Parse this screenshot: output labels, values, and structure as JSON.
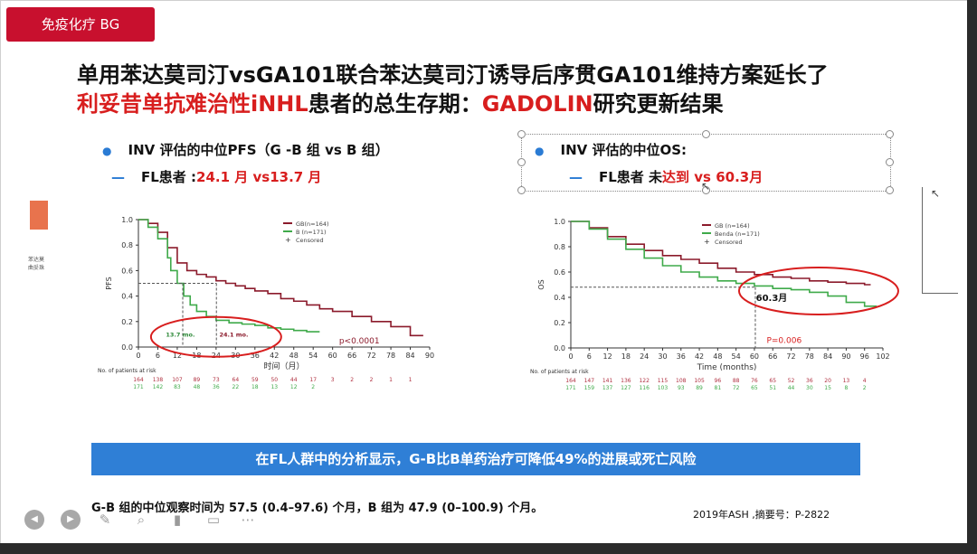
{
  "tag": "免疫化疗 BG",
  "title": {
    "line1": "单用苯达莫司汀vsGA101联合苯达莫司汀诱导后序贯GA101维持方案延长了",
    "line2_red": "利妥昔单抗难治性iNHL",
    "line2_mid": "患者的总生存期：",
    "line2_red2": "GADOLIN",
    "line2_end": "研究更新结果"
  },
  "left_panel": {
    "bullet": "INV 评估的中位PFS（G -B 组 vs  B 组）",
    "sub_prefix": "FL患者 :",
    "sub_value": "24.1 月 vs13.7 月"
  },
  "right_panel": {
    "bullet": "INV 评估的中位OS:",
    "sub_prefix": "FL患者 未",
    "sub_red": "达到",
    "sub_value": " vs 60.3月"
  },
  "side_label": "苯达莫\n曲妥珠",
  "chart_data": [
    {
      "type": "line",
      "ylabel": "PFS",
      "xlabel": "时间（月）",
      "ylim": [
        0,
        1.0
      ],
      "xlim": [
        0,
        90
      ],
      "x_ticks": [
        0,
        6,
        12,
        18,
        24,
        30,
        36,
        42,
        48,
        54,
        60,
        66,
        72,
        78,
        84,
        90
      ],
      "y_ticks": [
        "0.0",
        "0.2",
        "0.4",
        "0.6",
        "0.8",
        "1.0"
      ],
      "legend": [
        "GB(n=164)",
        "B (n=171)",
        "Censored"
      ],
      "series": [
        {
          "name": "GB(n=164)",
          "color": "#8b1a2b",
          "x": [
            0,
            3,
            6,
            9,
            12,
            15,
            18,
            21,
            24,
            27,
            30,
            33,
            36,
            40,
            44,
            48,
            52,
            56,
            60,
            66,
            72,
            78,
            84,
            88
          ],
          "y": [
            1.0,
            0.97,
            0.9,
            0.78,
            0.66,
            0.6,
            0.57,
            0.55,
            0.52,
            0.5,
            0.48,
            0.46,
            0.44,
            0.42,
            0.38,
            0.36,
            0.33,
            0.3,
            0.28,
            0.24,
            0.2,
            0.16,
            0.09,
            0.09
          ]
        },
        {
          "name": "B (n=171)",
          "color": "#3faa4a",
          "x": [
            0,
            3,
            6,
            9,
            10,
            12,
            14,
            16,
            18,
            21,
            24,
            28,
            32,
            36,
            40,
            44,
            48,
            52,
            56
          ],
          "y": [
            1.0,
            0.94,
            0.85,
            0.7,
            0.6,
            0.5,
            0.4,
            0.33,
            0.28,
            0.24,
            0.21,
            0.19,
            0.18,
            0.17,
            0.15,
            0.14,
            0.13,
            0.12,
            0.12
          ]
        }
      ],
      "annotations": [
        "13.7 mo.",
        "24.1 mo.",
        "p<0.0001"
      ],
      "risk_label": "No. of patients at risk",
      "risk": [
        {
          "color": "#b03040",
          "values": [
            "164",
            "138",
            "107",
            "89",
            "73",
            "64",
            "59",
            "50",
            "44",
            "17",
            "3",
            "2",
            "2",
            "1",
            "1"
          ]
        },
        {
          "color": "#3faa4a",
          "values": [
            "171",
            "142",
            "83",
            "48",
            "36",
            "22",
            "18",
            "13",
            "12",
            "2"
          ]
        }
      ]
    },
    {
      "type": "line",
      "ylabel": "OS",
      "xlabel": "Time (months)",
      "ylim": [
        0,
        1.0
      ],
      "xlim": [
        0,
        102
      ],
      "x_ticks": [
        0,
        6,
        12,
        18,
        24,
        30,
        36,
        42,
        48,
        54,
        60,
        66,
        72,
        78,
        84,
        90,
        96,
        102
      ],
      "y_ticks": [
        "0.0",
        "0.2",
        "0.4",
        "0.6",
        "0.8",
        "1.0"
      ],
      "legend": [
        "GB (n=164)",
        "Benda (n=171)",
        "Censored"
      ],
      "series": [
        {
          "name": "GB (n=164)",
          "color": "#8b1a2b",
          "x": [
            0,
            6,
            12,
            18,
            24,
            30,
            36,
            42,
            48,
            54,
            60,
            66,
            72,
            78,
            84,
            90,
            96,
            98
          ],
          "y": [
            1.0,
            0.95,
            0.88,
            0.82,
            0.77,
            0.73,
            0.7,
            0.67,
            0.63,
            0.6,
            0.58,
            0.56,
            0.55,
            0.53,
            0.52,
            0.51,
            0.5,
            0.5
          ]
        },
        {
          "name": "Benda (n=171)",
          "color": "#3faa4a",
          "x": [
            0,
            6,
            12,
            18,
            24,
            30,
            36,
            42,
            48,
            54,
            60,
            66,
            72,
            78,
            84,
            90,
            96,
            100
          ],
          "y": [
            1.0,
            0.94,
            0.86,
            0.78,
            0.71,
            0.65,
            0.6,
            0.56,
            0.53,
            0.51,
            0.49,
            0.47,
            0.46,
            0.44,
            0.41,
            0.36,
            0.33,
            0.33
          ]
        }
      ],
      "annotations": [
        "60.3月",
        "P=0.006"
      ],
      "risk_label": "No. of patients at risk",
      "risk": [
        {
          "color": "#b03040",
          "values": [
            "164",
            "147",
            "141",
            "136",
            "122",
            "115",
            "108",
            "105",
            "96",
            "88",
            "76",
            "65",
            "52",
            "36",
            "20",
            "13",
            "4"
          ]
        },
        {
          "color": "#3faa4a",
          "values": [
            "171",
            "159",
            "137",
            "127",
            "116",
            "103",
            "93",
            "89",
            "81",
            "72",
            "65",
            "51",
            "44",
            "30",
            "15",
            "8",
            "2"
          ]
        }
      ]
    }
  ],
  "banner": "在FL人群中的分析显示，G-B比B单药治疗可降低49%的进展或死亡风险",
  "footnote": "G-B 组的中位观察时间为 57.5 (0.4–97.6) 个月，B 组为 47.9 (0–100.9) 个月。",
  "reference": "2019年ASH ,摘要号：P-2822",
  "toolbar": [
    "prev-icon",
    "next-icon",
    "pen-icon",
    "zoom-icon",
    "video-icon",
    "comment-icon",
    "more-icon"
  ]
}
